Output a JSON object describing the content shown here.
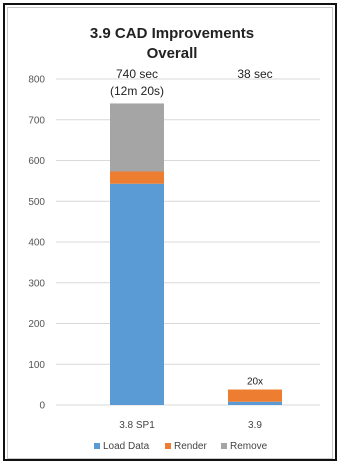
{
  "chart_data": {
    "type": "bar",
    "stacked": true,
    "title_lines": [
      "3.9 CAD Improvements",
      "Overall"
    ],
    "categories": [
      "3.8 SP1",
      "3.9"
    ],
    "series": [
      {
        "name": "Load Data",
        "color": "#5b9bd5",
        "values": [
          543,
          8
        ]
      },
      {
        "name": "Render",
        "color": "#ed7d31",
        "values": [
          30,
          30
        ]
      },
      {
        "name": "Remove",
        "color": "#a5a5a5",
        "values": [
          167,
          0
        ]
      }
    ],
    "ylim": [
      0,
      800
    ],
    "yticks": [
      0,
      100,
      200,
      300,
      400,
      500,
      600,
      700,
      800
    ],
    "grid": true,
    "legend": "bottom",
    "annotations": [
      {
        "category": "3.8 SP1",
        "lines": [
          "740 sec",
          "(12m 20s)"
        ]
      },
      {
        "category": "3.9",
        "lines": [
          "38 sec"
        ]
      },
      {
        "category": "3.9",
        "lines": [
          "20x"
        ],
        "kind": "above-bar"
      }
    ]
  }
}
